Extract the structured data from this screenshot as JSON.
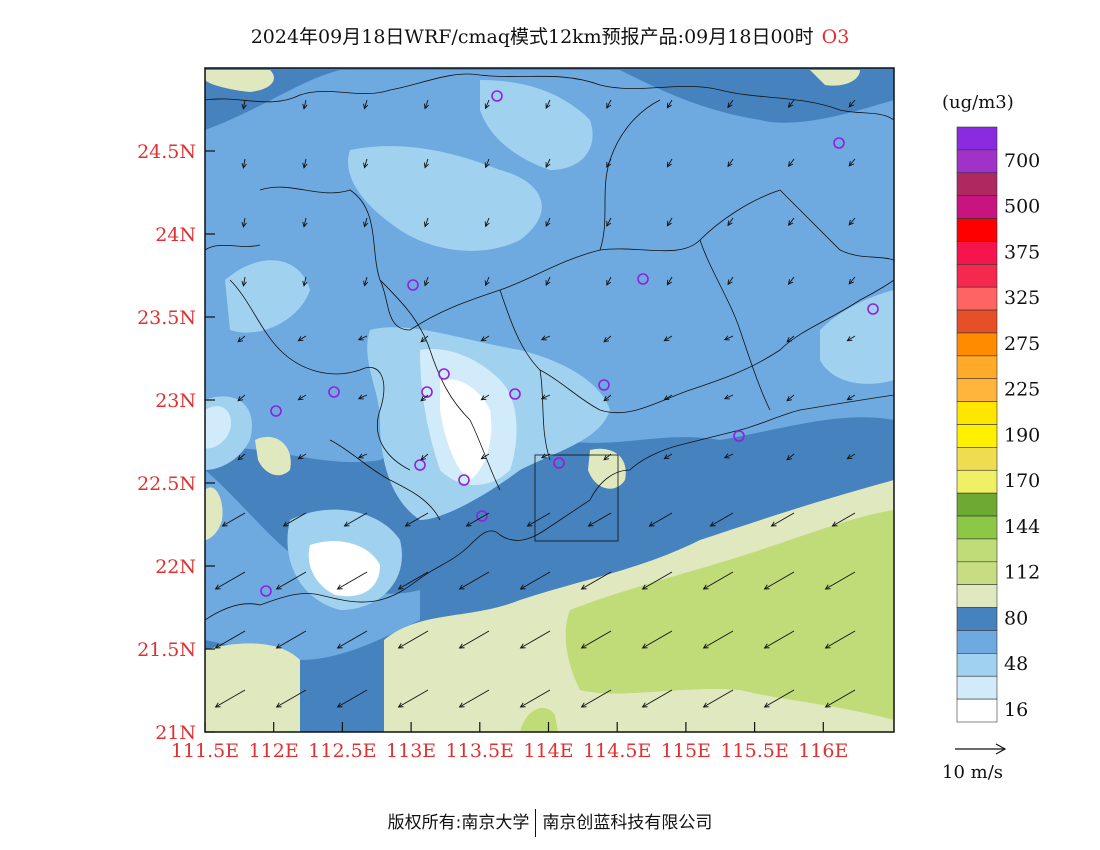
{
  "title": {
    "main": "2024年09月18日WRF/cmaq模式12km预报产品:09月18日00时",
    "species": "O3"
  },
  "axes": {
    "x_ticks": [
      "111.5E",
      "112E",
      "112.5E",
      "113E",
      "113.5E",
      "114E",
      "114.5E",
      "115E",
      "115.5E",
      "116E"
    ],
    "y_ticks": [
      "21N",
      "21.5N",
      "22N",
      "22.5N",
      "23N",
      "23.5N",
      "24N",
      "24.5N"
    ]
  },
  "legend": {
    "unit": "(ug/m3)",
    "labels": [
      "700",
      "500",
      "375",
      "325",
      "275",
      "225",
      "190",
      "170",
      "144",
      "112",
      "80",
      "48",
      "16"
    ],
    "colors": [
      "#8b2be0",
      "#a032c8",
      "#b02860",
      "#c81480",
      "#ff0000",
      "#f5144b",
      "#f52850",
      "#ff6464",
      "#e65028",
      "#ff8c00",
      "#ffaa28",
      "#ffb43c",
      "#ffe600",
      "#fff000",
      "#f0dc50",
      "#f0f064",
      "#6eaa32",
      "#8cc846",
      "#c0dc78",
      "#c8dc82",
      "#e0e8c0",
      "#4682be",
      "#6eaae0",
      "#a0d2f0",
      "#d2ebfa",
      "#ffffff"
    ],
    "wind_ref": "10 m/s"
  },
  "footer": {
    "left": "版权所有:南京大学",
    "right": "南京创蓝科技有限公司"
  }
}
